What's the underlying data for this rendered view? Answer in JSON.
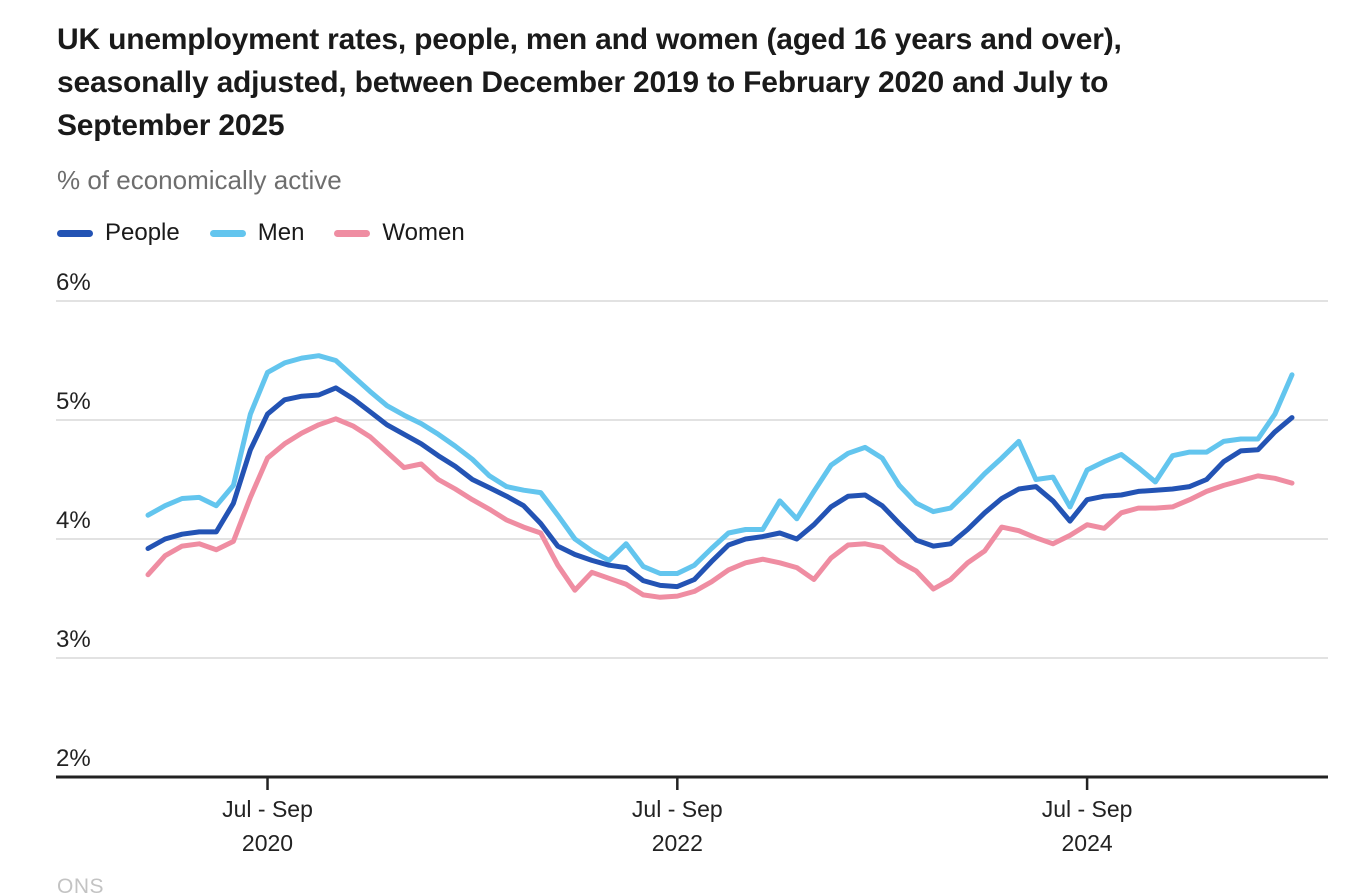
{
  "header": {
    "title": "UK unemployment rates, people, men and women (aged 16 years and over), seasonally adjusted, between December 2019 to February 2020 and July to September 2025",
    "title_lines": [
      "UK unemployment rates, people, men and women (aged 16 years and over),",
      "seasonally adjusted, between December 2019 to February 2020 and July to",
      "September 2025"
    ],
    "subtitle": "% of economically active"
  },
  "legend": {
    "items": [
      {
        "label": "People",
        "color": "#2353b4"
      },
      {
        "label": "Men",
        "color": "#63c5ee"
      },
      {
        "label": "Women",
        "color": "#ef8da2"
      }
    ]
  },
  "chart_data": {
    "type": "line",
    "title": "UK unemployment rates, people, men and women (aged 16 years and over), seasonally adjusted",
    "ylabel": "% of economically active",
    "x_start_period": "Dec 2019 to Feb 2020",
    "x_end_period": "Jul to Sep 2025",
    "x_frequency": "rolling 3-month periods, monthly",
    "n_points": 68,
    "grid": "horizontal only",
    "legend_position": "top-left",
    "y_axis": {
      "min": 2,
      "max": 6,
      "ticks": [
        {
          "value": 6,
          "label": "6%"
        },
        {
          "value": 5,
          "label": "5%"
        },
        {
          "value": 4,
          "label": "4%"
        },
        {
          "value": 3,
          "label": "3%"
        },
        {
          "value": 2,
          "label": "2%"
        }
      ]
    },
    "x_axis": {
      "ticks": [
        {
          "index": 7,
          "line1": "Jul - Sep",
          "line2": "2020"
        },
        {
          "index": 31,
          "line1": "Jul - Sep",
          "line2": "2022"
        },
        {
          "index": 55,
          "line1": "Jul - Sep",
          "line2": "2024"
        }
      ]
    },
    "series": [
      {
        "name": "People",
        "color": "#2353b4",
        "values": [
          3.92,
          4.0,
          4.04,
          4.06,
          4.06,
          4.3,
          4.75,
          5.05,
          5.17,
          5.2,
          5.21,
          5.27,
          5.18,
          5.07,
          4.96,
          4.88,
          4.8,
          4.7,
          4.61,
          4.5,
          4.43,
          4.36,
          4.28,
          4.13,
          3.94,
          3.87,
          3.82,
          3.78,
          3.76,
          3.65,
          3.61,
          3.6,
          3.66,
          3.81,
          3.95,
          4.0,
          4.02,
          4.05,
          4.0,
          4.12,
          4.27,
          4.36,
          4.37,
          4.28,
          4.13,
          3.99,
          3.94,
          3.96,
          4.08,
          4.22,
          4.34,
          4.42,
          4.44,
          4.32,
          4.15,
          4.33,
          4.36,
          4.37,
          4.4,
          4.41,
          4.42,
          4.44,
          4.5,
          4.65,
          4.74,
          4.75,
          4.9,
          5.02
        ]
      },
      {
        "name": "Men",
        "color": "#63c5ee",
        "values": [
          4.2,
          4.28,
          4.34,
          4.35,
          4.28,
          4.45,
          5.05,
          5.4,
          5.48,
          5.52,
          5.54,
          5.5,
          5.37,
          5.24,
          5.12,
          5.04,
          4.97,
          4.88,
          4.78,
          4.67,
          4.53,
          4.44,
          4.41,
          4.39,
          4.2,
          4.0,
          3.9,
          3.82,
          3.96,
          3.77,
          3.71,
          3.71,
          3.78,
          3.92,
          4.05,
          4.08,
          4.08,
          4.32,
          4.17,
          4.4,
          4.62,
          4.72,
          4.77,
          4.68,
          4.45,
          4.3,
          4.23,
          4.26,
          4.4,
          4.55,
          4.68,
          4.82,
          4.5,
          4.52,
          4.27,
          4.58,
          4.65,
          4.71,
          4.6,
          4.48,
          4.7,
          4.73,
          4.73,
          4.82,
          4.84,
          4.84,
          5.05,
          5.38
        ]
      },
      {
        "name": "Women",
        "color": "#ef8da2",
        "values": [
          3.7,
          3.86,
          3.94,
          3.96,
          3.91,
          3.98,
          4.35,
          4.68,
          4.8,
          4.89,
          4.96,
          5.01,
          4.95,
          4.86,
          4.73,
          4.6,
          4.63,
          4.5,
          4.42,
          4.33,
          4.25,
          4.16,
          4.1,
          4.05,
          3.78,
          3.57,
          3.72,
          3.67,
          3.62,
          3.53,
          3.51,
          3.52,
          3.56,
          3.64,
          3.74,
          3.8,
          3.83,
          3.8,
          3.76,
          3.66,
          3.84,
          3.95,
          3.96,
          3.93,
          3.81,
          3.73,
          3.58,
          3.66,
          3.8,
          3.9,
          4.1,
          4.07,
          4.01,
          3.96,
          4.03,
          4.12,
          4.09,
          4.22,
          4.26,
          4.26,
          4.27,
          4.33,
          4.4,
          4.45,
          4.49,
          4.53,
          4.51,
          4.47
        ]
      }
    ]
  },
  "footer": {
    "logo_text": "ONS"
  },
  "colors": {
    "grid": "#d9d9d9",
    "axis": "#222222",
    "title": "#1a1a1a",
    "subtitle": "#6e6e6e",
    "tick_label": "#222222",
    "logo": "#c3c3c3"
  }
}
